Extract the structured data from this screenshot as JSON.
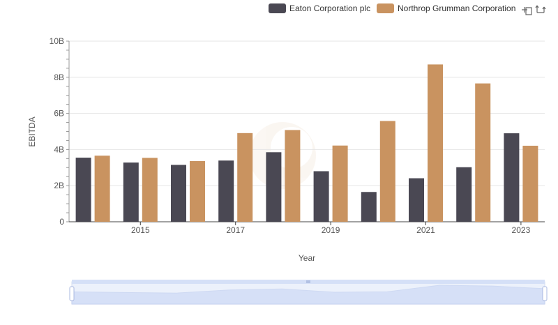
{
  "chart_data": {
    "type": "bar",
    "xlabel": "Year",
    "ylabel": "EBITDA",
    "ylim": [
      0,
      10000000000
    ],
    "y_ticks": [
      {
        "value": 0,
        "label": "0"
      },
      {
        "value": 2000000000,
        "label": "2B"
      },
      {
        "value": 4000000000,
        "label": "4B"
      },
      {
        "value": 6000000000,
        "label": "6B"
      },
      {
        "value": 8000000000,
        "label": "8B"
      },
      {
        "value": 10000000000,
        "label": "10B"
      }
    ],
    "categories": [
      "2014",
      "2015",
      "2016",
      "2017",
      "2018",
      "2019",
      "2020",
      "2021",
      "2022",
      "2023"
    ],
    "x_tick_labels": [
      {
        "category": "2015",
        "label": "2015"
      },
      {
        "category": "2017",
        "label": "2017"
      },
      {
        "category": "2019",
        "label": "2019"
      },
      {
        "category": "2021",
        "label": "2021"
      },
      {
        "category": "2023",
        "label": "2023"
      }
    ],
    "series": [
      {
        "name": "Eaton Corporation plc",
        "color": "#4a4853",
        "values": [
          3550000000,
          3280000000,
          3150000000,
          3390000000,
          3850000000,
          2800000000,
          1650000000,
          2410000000,
          3020000000,
          4900000000
        ]
      },
      {
        "name": "Northrop Grumman Corporation",
        "color": "#c99360",
        "values": [
          3660000000,
          3540000000,
          3360000000,
          4910000000,
          5080000000,
          4220000000,
          5580000000,
          8710000000,
          7660000000,
          4210000000
        ]
      }
    ],
    "legend_position": "top-right",
    "grid": true
  },
  "toolbox": {
    "zoom_icon": "zoom-area-icon",
    "restore_icon": "restore-icon"
  },
  "slider": {
    "fill_color": "#d5e0f7",
    "handle_color": "#a9b8e0"
  }
}
